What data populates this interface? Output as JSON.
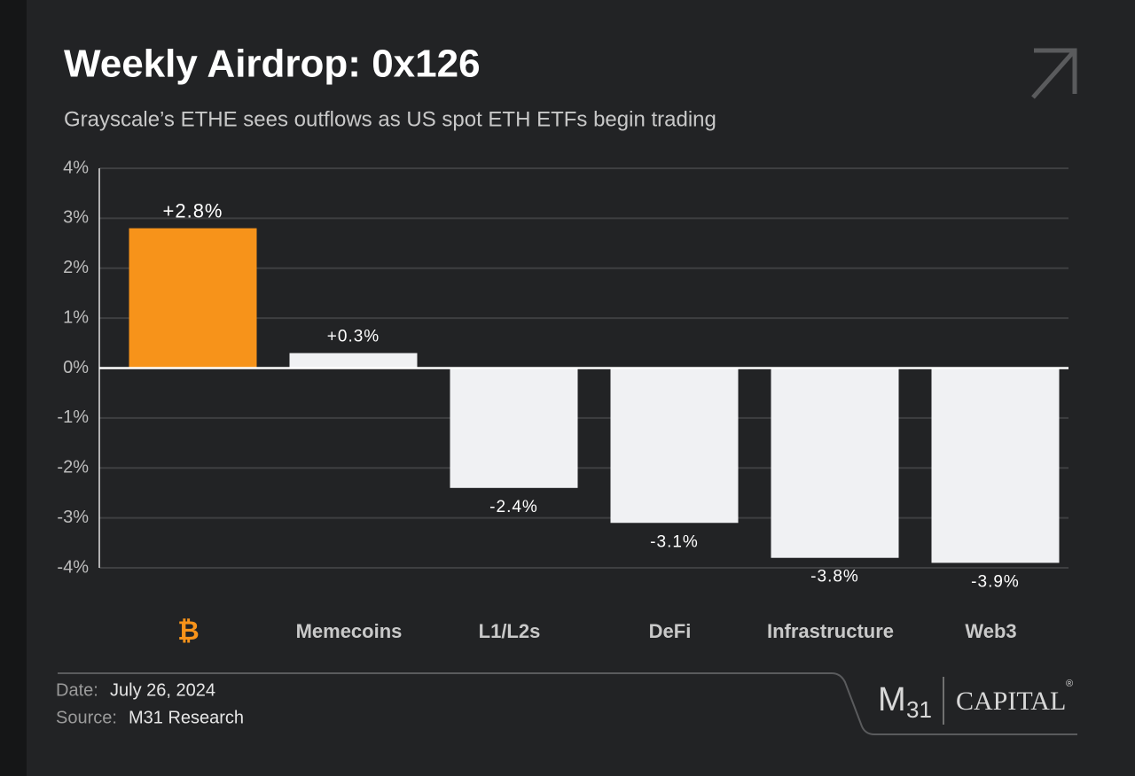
{
  "chart_data": {
    "type": "bar",
    "title": "Weekly Airdrop: 0x126",
    "subtitle": "Grayscale’s ETHE sees outflows as US spot ETH ETFs begin trading",
    "categories": [
      "₿",
      "Memecoins",
      "L1/L2s",
      "DeFi",
      "Infrastructure",
      "Web3"
    ],
    "values": [
      2.8,
      0.3,
      -2.4,
      -3.1,
      -3.8,
      -3.9
    ],
    "value_labels": [
      "+2.8%",
      "+0.3%",
      "-2.4%",
      "-3.1%",
      "-3.8%",
      "-3.9%"
    ],
    "colors": [
      "#f7931a",
      "#f0f1f3",
      "#f0f1f3",
      "#f0f1f3",
      "#f0f1f3",
      "#f0f1f3"
    ],
    "category_colors": [
      "#f7931a",
      "#c9c9c9",
      "#c9c9c9",
      "#c9c9c9",
      "#c9c9c9",
      "#c9c9c9"
    ],
    "ylim": [
      -4,
      4
    ],
    "yticks": [
      {
        "value": 4,
        "label": "4%"
      },
      {
        "value": 3,
        "label": "3%"
      },
      {
        "value": 2,
        "label": "2%"
      },
      {
        "value": 1,
        "label": "1%"
      },
      {
        "value": 0,
        "label": "0%"
      },
      {
        "value": -1,
        "label": "-1%"
      },
      {
        "value": -2,
        "label": "-2%"
      },
      {
        "value": -3,
        "label": "-3%"
      },
      {
        "value": -4,
        "label": "-4%"
      }
    ],
    "grid": true
  },
  "footer": {
    "date_label": "Date:",
    "date": "July 26, 2024",
    "source_label": "Source:",
    "source": "M31 Research"
  },
  "logo": {
    "letter": "M",
    "number": "31",
    "name": "CAPITAL",
    "mark": "®"
  }
}
